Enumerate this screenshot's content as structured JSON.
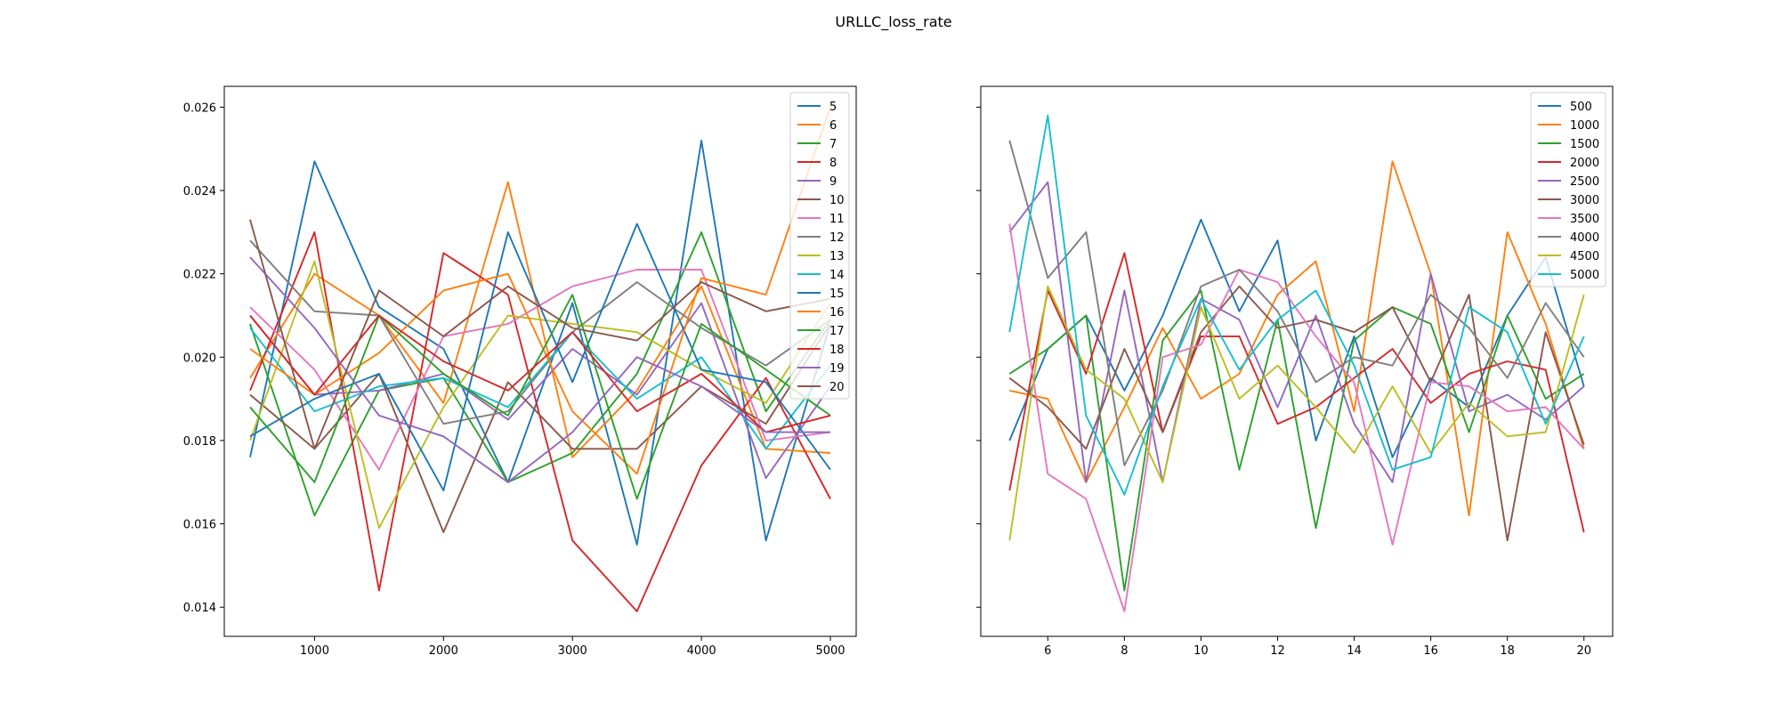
{
  "figure": {
    "title": "URLLC_loss_rate"
  },
  "colors": [
    "#1f77b4",
    "#ff7f0e",
    "#2ca02c",
    "#d62728",
    "#9467bd",
    "#8c564b",
    "#e377c2",
    "#7f7f7f",
    "#bcbd22",
    "#17becf"
  ],
  "chart_data": [
    {
      "type": "line",
      "title": "",
      "xlabel": "",
      "ylabel": "",
      "xlim": [
        300,
        5200
      ],
      "ylim": [
        0.0133,
        0.0265
      ],
      "xticks": [
        1000,
        2000,
        3000,
        4000,
        5000
      ],
      "yticks": [
        0.014,
        0.016,
        0.018,
        0.02,
        0.022,
        0.024,
        0.026
      ],
      "ytick_labels": [
        "0.014",
        "0.016",
        "0.018",
        "0.020",
        "0.022",
        "0.024",
        "0.026"
      ],
      "show_ytick_labels": true,
      "legend": "top-right",
      "grid": false,
      "x": [
        500,
        1000,
        1500,
        2000,
        2500,
        3000,
        3500,
        4000,
        4500,
        5000
      ],
      "series": [
        {
          "name": "5",
          "values": [
            0.0176,
            0.0247,
            0.0212,
            0.0202,
            0.017,
            0.0213,
            0.0155,
            0.0252,
            0.0156,
            0.0208
          ]
        },
        {
          "name": "6",
          "values": [
            0.0195,
            0.022,
            0.021,
            0.0189,
            0.0242,
            0.0176,
            0.0192,
            0.0217,
            0.0178,
            0.0177
          ]
        },
        {
          "name": "7",
          "values": [
            0.0208,
            0.0162,
            0.0192,
            0.0195,
            0.017,
            0.0177,
            0.0196,
            0.023,
            0.0187,
            0.0209
          ]
        },
        {
          "name": "8",
          "values": [
            0.0192,
            0.023,
            0.0144,
            0.0225,
            0.0215,
            0.0156,
            0.0139,
            0.0174,
            0.0195,
            0.0166
          ]
        },
        {
          "name": "9",
          "values": [
            0.021,
            0.0191,
            0.0192,
            0.0196,
            0.0185,
            0.0202,
            0.0191,
            0.0213,
            0.0171,
            0.0193
          ]
        },
        {
          "name": "10",
          "values": [
            0.0191,
            0.0178,
            0.0196,
            0.0158,
            0.0194,
            0.0178,
            0.0178,
            0.0193,
            0.0184,
            0.0208
          ]
        },
        {
          "name": "11",
          "values": [
            0.0212,
            0.0197,
            0.0173,
            0.0205,
            0.0208,
            0.0217,
            0.0221,
            0.0221,
            0.018,
            0.0182
          ]
        },
        {
          "name": "12",
          "values": [
            0.0228,
            0.0211,
            0.021,
            0.0184,
            0.0187,
            0.0206,
            0.0218,
            0.0207,
            0.0198,
            0.0209
          ]
        },
        {
          "name": "13",
          "values": [
            0.018,
            0.0223,
            0.0159,
            0.0188,
            0.021,
            0.0208,
            0.0206,
            0.0197,
            0.0189,
            0.0213
          ]
        },
        {
          "name": "14",
          "values": [
            0.0207,
            0.0187,
            0.0193,
            0.0195,
            0.0188,
            0.0206,
            0.019,
            0.02,
            0.0178,
            0.0198
          ]
        },
        {
          "name": "15",
          "values": [
            0.0181,
            0.019,
            0.0196,
            0.0168,
            0.023,
            0.0194,
            0.0232,
            0.0197,
            0.0194,
            0.0173
          ]
        },
        {
          "name": "16",
          "values": [
            0.0202,
            0.0191,
            0.0201,
            0.0216,
            0.022,
            0.0187,
            0.0172,
            0.0219,
            0.0215,
            0.026
          ]
        },
        {
          "name": "17",
          "values": [
            0.0188,
            0.017,
            0.021,
            0.0196,
            0.0186,
            0.0215,
            0.0166,
            0.0208,
            0.0197,
            0.0186
          ]
        },
        {
          "name": "18",
          "values": [
            0.021,
            0.0191,
            0.021,
            0.0199,
            0.0192,
            0.0206,
            0.0187,
            0.0196,
            0.0182,
            0.0186
          ]
        },
        {
          "name": "19",
          "values": [
            0.0224,
            0.0207,
            0.0186,
            0.0181,
            0.017,
            0.0182,
            0.02,
            0.0193,
            0.0182,
            0.0182
          ]
        },
        {
          "name": "20",
          "values": [
            0.0233,
            0.0178,
            0.0216,
            0.0205,
            0.0217,
            0.0207,
            0.0204,
            0.0218,
            0.0211,
            0.0214
          ]
        }
      ]
    },
    {
      "type": "line",
      "title": "",
      "xlabel": "",
      "ylabel": "",
      "xlim": [
        4.25,
        20.75
      ],
      "ylim": [
        0.0133,
        0.0265
      ],
      "xticks": [
        6,
        8,
        10,
        12,
        14,
        16,
        18,
        20
      ],
      "yticks": [
        0.014,
        0.016,
        0.018,
        0.02,
        0.022,
        0.024,
        0.026
      ],
      "show_ytick_labels": false,
      "legend": "top-right",
      "grid": false,
      "x": [
        5,
        6,
        7,
        8,
        9,
        10,
        11,
        12,
        13,
        14,
        15,
        16,
        17,
        18,
        19,
        20
      ],
      "series": [
        {
          "name": "500",
          "values": [
            0.018,
            0.0202,
            0.021,
            0.0192,
            0.021,
            0.0233,
            0.0211,
            0.0228,
            0.018,
            0.0205,
            0.0176,
            0.0195,
            0.0188,
            0.021,
            0.0224,
            0.0193
          ]
        },
        {
          "name": "1000",
          "values": [
            0.0192,
            0.019,
            0.017,
            0.0188,
            0.0207,
            0.019,
            0.0196,
            0.0215,
            0.0223,
            0.0187,
            0.0247,
            0.022,
            0.0162,
            0.023,
            0.0208,
            0.0178
          ]
        },
        {
          "name": "1500",
          "values": [
            0.0196,
            0.0202,
            0.021,
            0.0144,
            0.0204,
            0.0216,
            0.0173,
            0.0209,
            0.0159,
            0.0204,
            0.0212,
            0.0208,
            0.0182,
            0.021,
            0.019,
            0.0196
          ]
        },
        {
          "name": "2000",
          "values": [
            0.0168,
            0.0216,
            0.0196,
            0.0225,
            0.0182,
            0.0205,
            0.0205,
            0.0184,
            0.0188,
            0.0195,
            0.0202,
            0.0189,
            0.0196,
            0.0199,
            0.0197,
            0.0158
          ]
        },
        {
          "name": "2500",
          "values": [
            0.023,
            0.0242,
            0.017,
            0.0216,
            0.017,
            0.0214,
            0.0209,
            0.0188,
            0.021,
            0.0184,
            0.017,
            0.022,
            0.0187,
            0.0191,
            0.0185,
            0.0193
          ]
        },
        {
          "name": "3000",
          "values": [
            0.0195,
            0.0188,
            0.0178,
            0.0202,
            0.0182,
            0.0206,
            0.0217,
            0.0207,
            0.0209,
            0.0206,
            0.0212,
            0.0194,
            0.0215,
            0.0156,
            0.0206,
            0.0179
          ]
        },
        {
          "name": "3500",
          "values": [
            0.0232,
            0.0172,
            0.0166,
            0.0139,
            0.02,
            0.0203,
            0.0221,
            0.0218,
            0.0205,
            0.0194,
            0.0155,
            0.0194,
            0.0193,
            0.0187,
            0.0188,
            0.0178
          ]
        },
        {
          "name": "4000",
          "values": [
            0.0252,
            0.0219,
            0.023,
            0.0174,
            0.0192,
            0.0217,
            0.0221,
            0.0211,
            0.0194,
            0.02,
            0.0198,
            0.0215,
            0.0207,
            0.0195,
            0.0213,
            0.02
          ]
        },
        {
          "name": "4500",
          "values": [
            0.0156,
            0.0217,
            0.0197,
            0.019,
            0.017,
            0.0212,
            0.019,
            0.0198,
            0.0188,
            0.0177,
            0.0193,
            0.0177,
            0.0189,
            0.0181,
            0.0182,
            0.0215
          ]
        },
        {
          "name": "5000",
          "values": [
            0.0206,
            0.0258,
            0.0186,
            0.0167,
            0.0193,
            0.0214,
            0.0197,
            0.0209,
            0.0216,
            0.0198,
            0.0173,
            0.0176,
            0.0212,
            0.0206,
            0.0184,
            0.0205
          ]
        }
      ]
    }
  ]
}
